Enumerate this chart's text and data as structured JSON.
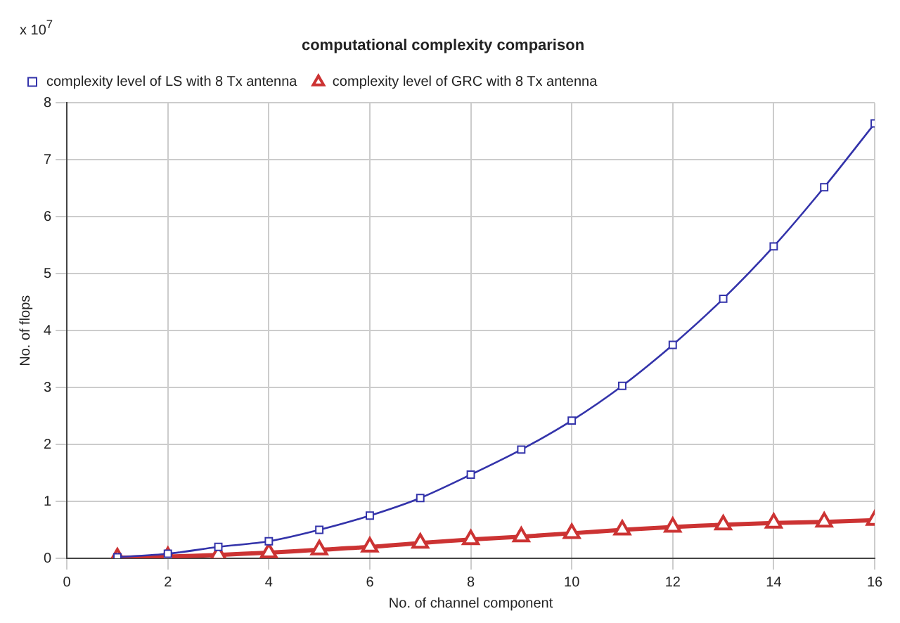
{
  "chart_data": {
    "type": "line",
    "title": "computational complexity comparison",
    "xlabel": "No. of channel component",
    "ylabel": "No. of flops",
    "annotations": [
      "x 10$^{7}$"
    ],
    "x": [
      1,
      2,
      3,
      4,
      5,
      6,
      7,
      8,
      9,
      10,
      11,
      12,
      13,
      14,
      15,
      16
    ],
    "series": [
      {
        "name": "complexity level of LS with 8 Tx antenna",
        "color": "#3333aa",
        "marker": "square",
        "values": [
          0.02,
          0.08,
          0.2,
          0.3,
          0.5,
          0.75,
          1.06,
          1.47,
          1.91,
          2.42,
          3.03,
          3.75,
          4.56,
          5.48,
          6.52,
          7.64
        ]
      },
      {
        "name": "complexity level of GRC with 8 Tx antenna",
        "color": "#cc3333",
        "marker": "triangle",
        "values": [
          0.01,
          0.03,
          0.06,
          0.1,
          0.15,
          0.2,
          0.27,
          0.33,
          0.38,
          0.44,
          0.5,
          0.55,
          0.59,
          0.62,
          0.64,
          0.67
        ]
      }
    ],
    "xlim": [
      0,
      16
    ],
    "xticks": [
      0,
      2,
      4,
      6,
      8,
      10,
      12,
      14,
      16
    ],
    "ylim": [
      0,
      8
    ],
    "yticks": [
      0,
      1,
      2,
      3,
      4,
      5,
      6,
      7,
      8
    ],
    "grid": true,
    "legend": "top left"
  }
}
